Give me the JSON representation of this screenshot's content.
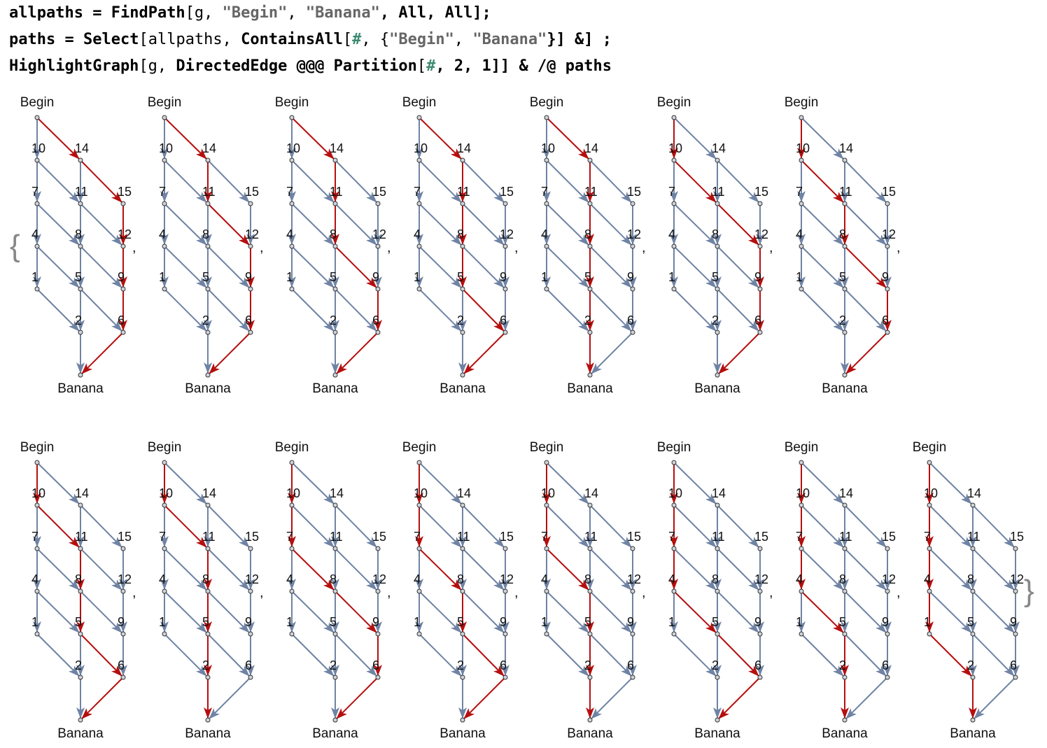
{
  "code_lines": [
    [
      {
        "t": "allpaths",
        "k": "b"
      },
      {
        "t": " = ",
        "k": "b"
      },
      {
        "t": "FindPath",
        "k": "b"
      },
      {
        "t": "[g, ",
        "k": "p"
      },
      {
        "t": "\"Begin\"",
        "k": "s"
      },
      {
        "t": ", ",
        "k": "p"
      },
      {
        "t": "\"Banana\"",
        "k": "s"
      },
      {
        "t": ", All, All];",
        "k": "b"
      }
    ],
    [
      {
        "t": "paths",
        "k": "b"
      },
      {
        "t": " = ",
        "k": "b"
      },
      {
        "t": "Select",
        "k": "b"
      },
      {
        "t": "[allpaths, ",
        "k": "p"
      },
      {
        "t": "ContainsAll",
        "k": "b"
      },
      {
        "t": "[",
        "k": "p"
      },
      {
        "t": "#",
        "k": "h"
      },
      {
        "t": ", {",
        "k": "p"
      },
      {
        "t": "\"Begin\"",
        "k": "s"
      },
      {
        "t": ", ",
        "k": "p"
      },
      {
        "t": "\"Banana\"",
        "k": "s"
      },
      {
        "t": "}] &] ;",
        "k": "b"
      }
    ],
    [
      {
        "t": "HighlightGraph",
        "k": "b"
      },
      {
        "t": "[g, ",
        "k": "p"
      },
      {
        "t": "DirectedEdge",
        "k": "b"
      },
      {
        "t": " @@@ ",
        "k": "b"
      },
      {
        "t": "Partition",
        "k": "b"
      },
      {
        "t": "[",
        "k": "p"
      },
      {
        "t": "#",
        "k": "h"
      },
      {
        "t": ", 2, 1]] & /@ ",
        "k": "b"
      },
      {
        "t": "paths",
        "k": "b"
      }
    ]
  ],
  "graph": {
    "begin_label": "Begin",
    "end_label": "Banana",
    "node_labels": [
      "10",
      "14",
      "7",
      "11",
      "15",
      "4",
      "8",
      "12",
      "1",
      "5",
      "9",
      "2",
      "6"
    ],
    "edge_color": "#6f83a4",
    "highlight_color": "#b50f0f",
    "node_fill": "#cfd3da",
    "node_stroke": "#333333"
  },
  "brace_open": "{",
  "brace_close": "}",
  "separator": ",",
  "paths": [
    [
      "Begin",
      "14",
      "15",
      "12",
      "9",
      "6",
      "Banana"
    ],
    [
      "Begin",
      "14",
      "11",
      "12",
      "9",
      "6",
      "Banana"
    ],
    [
      "Begin",
      "14",
      "11",
      "8",
      "9",
      "6",
      "Banana"
    ],
    [
      "Begin",
      "14",
      "11",
      "8",
      "5",
      "6",
      "Banana"
    ],
    [
      "Begin",
      "14",
      "11",
      "8",
      "5",
      "2",
      "Banana"
    ],
    [
      "Begin",
      "10",
      "11",
      "12",
      "9",
      "6",
      "Banana"
    ],
    [
      "Begin",
      "10",
      "11",
      "8",
      "9",
      "6",
      "Banana"
    ],
    [
      "Begin",
      "10",
      "11",
      "8",
      "5",
      "6",
      "Banana"
    ],
    [
      "Begin",
      "10",
      "11",
      "8",
      "5",
      "2",
      "Banana"
    ],
    [
      "Begin",
      "10",
      "7",
      "8",
      "9",
      "6",
      "Banana"
    ],
    [
      "Begin",
      "10",
      "7",
      "8",
      "5",
      "6",
      "Banana"
    ],
    [
      "Begin",
      "10",
      "7",
      "8",
      "5",
      "2",
      "Banana"
    ],
    [
      "Begin",
      "10",
      "7",
      "4",
      "5",
      "6",
      "Banana"
    ],
    [
      "Begin",
      "10",
      "7",
      "4",
      "5",
      "2",
      "Banana"
    ],
    [
      "Begin",
      "10",
      "7",
      "4",
      "1",
      "2",
      "Banana"
    ]
  ]
}
